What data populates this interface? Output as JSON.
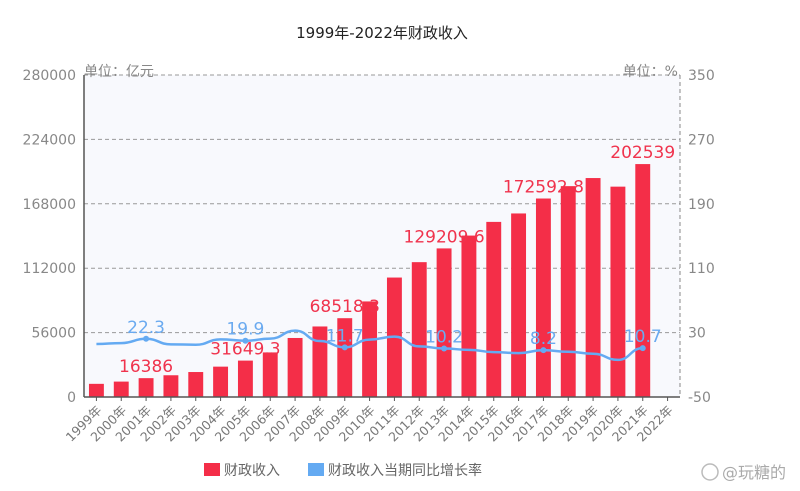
{
  "chart_data": {
    "type": "bar+line",
    "title": "1999年-2022年财政收入",
    "left_unit": "单位：亿元",
    "right_unit": "单位：%",
    "categories": [
      "1999年",
      "2000年",
      "2001年",
      "2002年",
      "2003年",
      "2004年",
      "2005年",
      "2006年",
      "2007年",
      "2008年",
      "2009年",
      "2010年",
      "2011年",
      "2012年",
      "2013年",
      "2014年",
      "2015年",
      "2016年",
      "2017年",
      "2018年",
      "2019年",
      "2020年",
      "2021年",
      "2022年"
    ],
    "y_left": {
      "range": [
        0,
        280000
      ],
      "ticks": [
        "0",
        "56000",
        "112000",
        "168000",
        "224000",
        "280000"
      ]
    },
    "y_right": {
      "range": [
        -50,
        350
      ],
      "ticks": [
        "-50",
        "30",
        "110",
        "190",
        "270",
        "350"
      ]
    },
    "grid": "dashed horizontal",
    "legend_position": "bottom",
    "series": [
      {
        "name": "财政收入",
        "type": "bar",
        "color": "#f42e48",
        "axis": "left",
        "values": [
          11444,
          13395,
          16386,
          18904,
          21715,
          26396,
          31649.3,
          38760,
          51322,
          61330,
          68518.3,
          83102,
          103874,
          117254,
          129209.6,
          140370,
          152269,
          159605,
          172592.8,
          183360,
          190390,
          182914,
          202539,
          null
        ],
        "labels": {
          "2001年": "16386",
          "2005年": "31649.3",
          "2009年": "68518.3",
          "2013年": "129209.6",
          "2017年": "172592.8",
          "2021年": "202539"
        }
      },
      {
        "name": "财政收入当期同比增长率",
        "type": "line",
        "color": "#64aaf2",
        "axis": "right",
        "values": [
          15.9,
          17.0,
          22.3,
          15.4,
          14.9,
          21.6,
          19.9,
          22.5,
          32.4,
          19.5,
          11.7,
          21.3,
          25.0,
          12.9,
          10.2,
          8.6,
          5.8,
          4.5,
          8.2,
          6.2,
          3.8,
          -3.9,
          10.7,
          null
        ],
        "labels": {
          "2001年": "22.3",
          "2005年": "19.9",
          "2009年": "11.7",
          "2013年": "10.2",
          "2017年": "8.2",
          "2021年": "10.7"
        }
      }
    ]
  },
  "watermark": "@玩糖的"
}
